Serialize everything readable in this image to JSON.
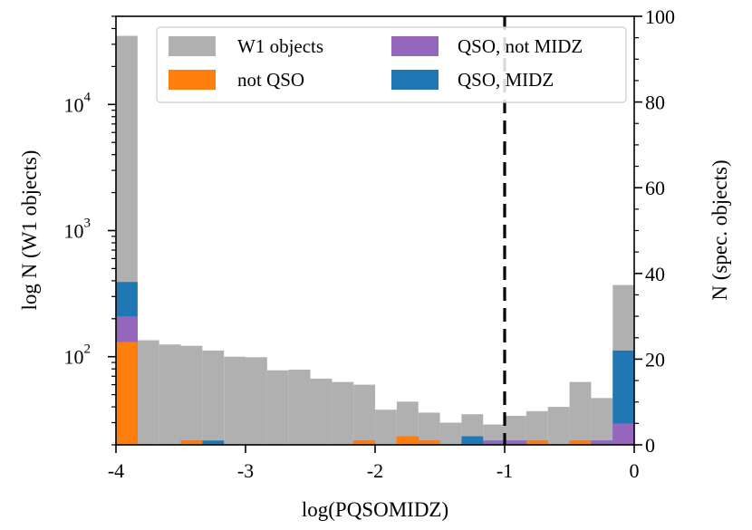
{
  "chart_data": {
    "type": "bar",
    "title": "",
    "xlabel": "log(PQSOMIDZ)",
    "ylabel_left": "log N (W1 objects)",
    "ylabel_right": "N (spec. objects)",
    "xlim": [
      -4.0,
      0.0
    ],
    "ylim_left_log": [
      20,
      50000
    ],
    "ylim_right": [
      0,
      100
    ],
    "x_ticks": [
      -4,
      -3,
      -2,
      -1,
      0
    ],
    "x_tick_labels": [
      "-4",
      "-3",
      "-2",
      "-1",
      "0"
    ],
    "y_left_ticks": [
      100,
      1000,
      10000
    ],
    "y_left_tick_labels": [
      {
        "base": "10",
        "exp": "2"
      },
      {
        "base": "10",
        "exp": "3"
      },
      {
        "base": "10",
        "exp": "4"
      }
    ],
    "y_right_ticks": [
      0,
      20,
      40,
      60,
      80,
      100
    ],
    "y_right_tick_labels": [
      "0",
      "20",
      "40",
      "60",
      "80",
      "100"
    ],
    "threshold_line": {
      "x": -1.0,
      "style": "dashed",
      "color": "#000000"
    },
    "bin_start": -4.0,
    "bin_width": 0.1667,
    "series": [
      {
        "name": "W1 objects",
        "axis": "left",
        "color": "#b0b0b0",
        "values": [
          35000,
          135,
          125,
          122,
          112,
          100,
          99,
          78,
          79,
          67,
          63,
          60,
          38,
          44,
          36,
          30,
          35,
          29,
          34,
          37,
          40,
          63,
          47,
          370
        ]
      },
      {
        "name": "not QSO",
        "axis": "right",
        "color": "#ff7f0e",
        "values": [
          24,
          0,
          0,
          1,
          0,
          0,
          0,
          0,
          0,
          0,
          0,
          1,
          0,
          2,
          1,
          0,
          0,
          0,
          0,
          1,
          0,
          1,
          0,
          0
        ]
      },
      {
        "name": "QSO, not MIDZ",
        "axis": "right",
        "color": "#9467bd",
        "values": [
          30,
          0,
          0,
          1,
          0,
          0,
          0,
          0,
          0,
          0,
          0,
          1,
          0,
          2,
          1,
          0,
          0,
          1,
          1,
          1,
          0,
          1,
          1,
          5
        ]
      },
      {
        "name": "QSO, MIDZ",
        "axis": "right",
        "color": "#1f77b4",
        "values": [
          38,
          0,
          0,
          1,
          1,
          0,
          0,
          0,
          0,
          0,
          0,
          1,
          0,
          2,
          1,
          0,
          2,
          1,
          1,
          1,
          0,
          1,
          1,
          22
        ]
      }
    ],
    "legend": {
      "placement": "top-center",
      "entries": [
        {
          "label": "W1 objects",
          "color": "#b0b0b0"
        },
        {
          "label": "QSO, not MIDZ",
          "color": "#9467bd"
        },
        {
          "label": "not QSO",
          "color": "#ff7f0e"
        },
        {
          "label": "QSO, MIDZ",
          "color": "#1f77b4"
        }
      ]
    }
  }
}
